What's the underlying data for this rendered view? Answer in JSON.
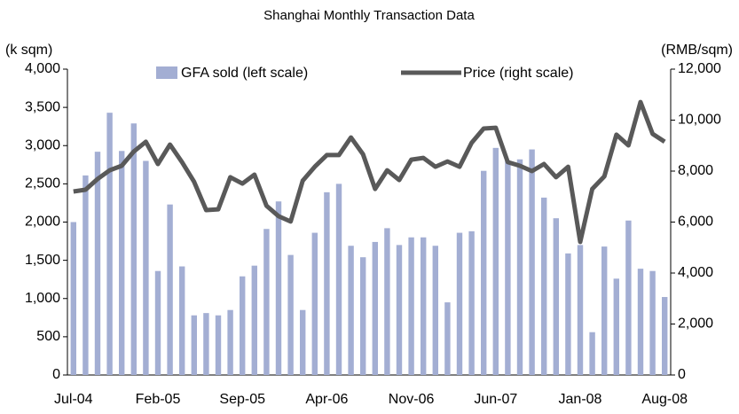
{
  "chart_data": {
    "type": "bar-line",
    "title": "Shanghai Monthly Transaction Data",
    "y_label": "(k sqm)",
    "y2_label": "(RMB/sqm)",
    "categories": [
      "Jul-04",
      null,
      null,
      null,
      null,
      null,
      null,
      "Feb-05",
      null,
      null,
      null,
      null,
      null,
      null,
      "Sep-05",
      null,
      null,
      null,
      null,
      null,
      null,
      "Apr-06",
      null,
      null,
      null,
      null,
      null,
      null,
      "Nov-06",
      null,
      null,
      null,
      null,
      null,
      null,
      "Jun-07",
      null,
      null,
      null,
      null,
      null,
      null,
      "Jan-08",
      null,
      null,
      null,
      null,
      null,
      null,
      "Aug-08"
    ],
    "series": [
      {
        "name": "GFA sold (left scale)",
        "type": "bar",
        "color": "#a3aed3",
        "values": [
          2000,
          2610,
          2920,
          3430,
          2930,
          3290,
          2800,
          1360,
          2230,
          1420,
          780,
          810,
          780,
          850,
          1290,
          1430,
          1910,
          2270,
          1570,
          850,
          1860,
          2390,
          2500,
          1690,
          1540,
          1740,
          1920,
          1700,
          1800,
          1800,
          1690,
          950,
          1860,
          1880,
          2670,
          2970,
          2800,
          2820,
          2950,
          2320,
          2050,
          1590,
          1700,
          560,
          1680,
          1260,
          2020,
          1390,
          1360,
          1020
        ]
      },
      {
        "name": "Price (right scale)",
        "type": "line",
        "axis": "y2",
        "color": "#595959",
        "values": [
          7200,
          7270,
          7690,
          8030,
          8210,
          8770,
          9150,
          8280,
          9040,
          8350,
          7580,
          6470,
          6500,
          7760,
          7510,
          7860,
          6640,
          6230,
          6020,
          7620,
          8170,
          8630,
          8630,
          9320,
          8660,
          7300,
          8030,
          7650,
          8450,
          8520,
          8170,
          8380,
          8170,
          9110,
          9670,
          9700,
          8350,
          8210,
          8000,
          8280,
          7760,
          8170,
          5220,
          7300,
          7790,
          9430,
          9010,
          10710,
          9460,
          9150
        ]
      }
    ],
    "ylim": [
      0,
      4000
    ],
    "yticks": [
      0,
      500,
      {
        "value": 1000,
        "label": "1,000"
      },
      {
        "value": 1500,
        "label": "1,500"
      },
      {
        "value": 2000,
        "label": "2,000"
      },
      {
        "value": 2500,
        "label": "2,500"
      },
      {
        "value": 3000,
        "label": "3,000"
      },
      {
        "value": 3500,
        "label": "3,500"
      },
      {
        "value": 4000,
        "label": "4,000"
      }
    ],
    "y2lim": [
      0,
      12000
    ],
    "y2ticks": [
      0,
      {
        "value": 2000,
        "label": "2,000"
      },
      {
        "value": 4000,
        "label": "4,000"
      },
      {
        "value": 6000,
        "label": "6,000"
      },
      {
        "value": 8000,
        "label": "8,000"
      },
      {
        "value": 10000,
        "label": "10,000"
      },
      {
        "value": 12000,
        "label": "12,000"
      }
    ],
    "grid": false
  }
}
